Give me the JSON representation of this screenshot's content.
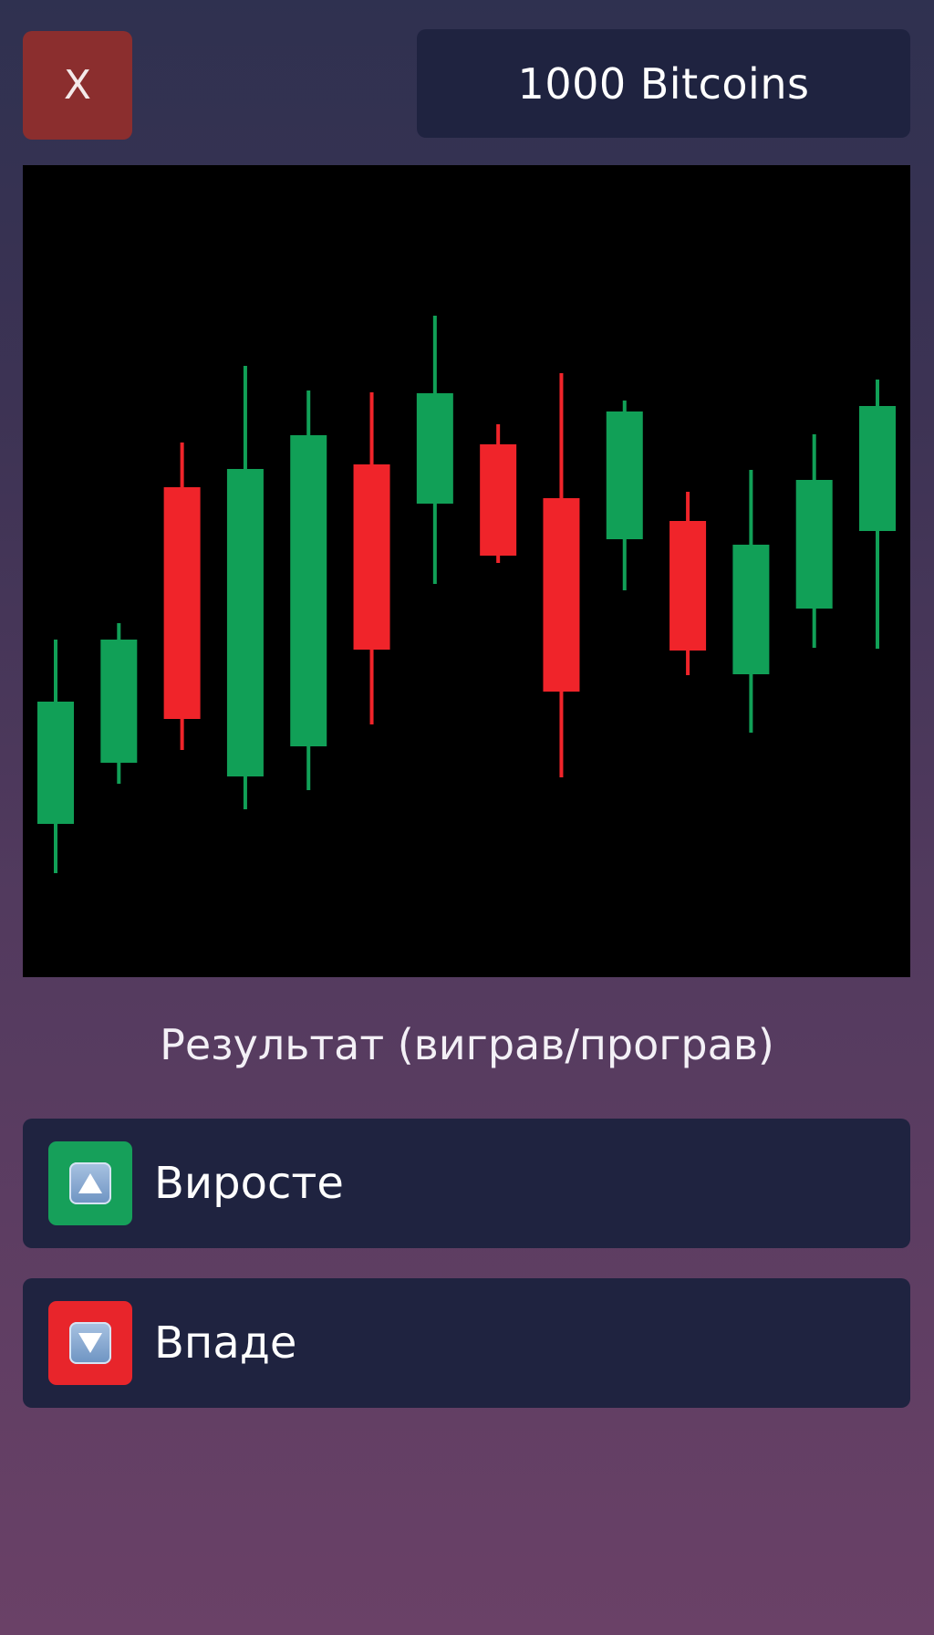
{
  "header": {
    "close_label": "X",
    "balance_text": "1000 Bitcoins"
  },
  "result": {
    "label": "Результат (виграв/програв)"
  },
  "options": [
    {
      "label": "Виросте",
      "icon": "up-arrow-icon",
      "color": "#16a05a"
    },
    {
      "label": "Впаде",
      "icon": "down-arrow-icon",
      "color": "#e8252b"
    }
  ],
  "colors": {
    "bullish": "#11a057",
    "bearish": "#f0242a",
    "close_button": "#8b2e2e",
    "panel": "#1f2340"
  },
  "chart_data": {
    "type": "candlestick",
    "x": [
      1,
      2,
      3,
      4,
      5,
      6,
      7,
      8,
      9,
      10,
      11,
      12,
      13,
      14
    ],
    "series": [
      {
        "values": [
          {
            "open": 168,
            "close": 302,
            "high": 370,
            "low": 114,
            "direction": "up"
          },
          {
            "open": 235,
            "close": 370,
            "high": 388,
            "low": 212,
            "direction": "up"
          },
          {
            "open": 283,
            "close": 537,
            "high": 586,
            "low": 249,
            "direction": "down"
          },
          {
            "open": 220,
            "close": 557,
            "high": 670,
            "low": 184,
            "direction": "up"
          },
          {
            "open": 253,
            "close": 594,
            "high": 643,
            "low": 205,
            "direction": "up"
          },
          {
            "open": 359,
            "close": 562,
            "high": 641,
            "low": 277,
            "direction": "down"
          },
          {
            "open": 519,
            "close": 640,
            "high": 725,
            "low": 431,
            "direction": "up"
          },
          {
            "open": 462,
            "close": 584,
            "high": 606,
            "low": 454,
            "direction": "down"
          },
          {
            "open": 313,
            "close": 525,
            "high": 662,
            "low": 219,
            "direction": "down"
          },
          {
            "open": 480,
            "close": 620,
            "high": 632,
            "low": 424,
            "direction": "up"
          },
          {
            "open": 358,
            "close": 500,
            "high": 532,
            "low": 331,
            "direction": "down"
          },
          {
            "open": 332,
            "close": 474,
            "high": 556,
            "low": 268,
            "direction": "up"
          },
          {
            "open": 404,
            "close": 545,
            "high": 595,
            "low": 361,
            "direction": "up"
          },
          {
            "open": 489,
            "close": 626,
            "high": 655,
            "low": 360,
            "direction": "up"
          }
        ]
      }
    ],
    "ylim": [
      0,
      890
    ],
    "grid": false
  }
}
